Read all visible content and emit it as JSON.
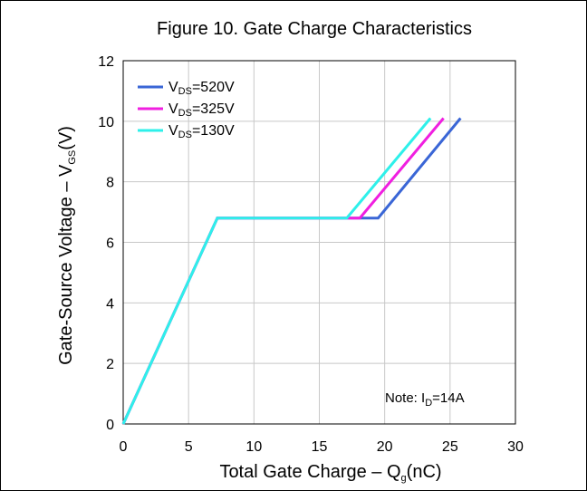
{
  "chart_data": {
    "type": "line",
    "title": "Figure 10. Gate Charge Characteristics",
    "xlabel": {
      "main": "Total Gate Charge  –  Q",
      "sub": "g",
      "unit": "(nC)"
    },
    "ylabel": {
      "main": "Gate-Source Voltage  –  V",
      "sub": "GS",
      "unit": "(V)"
    },
    "xlim": [
      0,
      30
    ],
    "ylim": [
      0,
      12
    ],
    "xticks": [
      0,
      5,
      10,
      15,
      20,
      25,
      30
    ],
    "yticks": [
      0,
      2,
      4,
      6,
      8,
      10,
      12
    ],
    "grid": true,
    "legend_position": "top-left",
    "series": [
      {
        "name": {
          "pre": "V",
          "sub": "DS",
          "post": "=520V"
        },
        "color": "#3a66d6",
        "x": [
          0,
          7.2,
          19.5,
          25.8
        ],
        "y": [
          0,
          6.8,
          6.8,
          10.1
        ]
      },
      {
        "name": {
          "pre": "V",
          "sub": "DS",
          "post": "=325V"
        },
        "color": "#f01fe0",
        "x": [
          0,
          7.2,
          18.1,
          24.5
        ],
        "y": [
          0,
          6.8,
          6.8,
          10.1
        ]
      },
      {
        "name": {
          "pre": "V",
          "sub": "DS",
          "post": "=130V"
        },
        "color": "#2ef0ea",
        "x": [
          0,
          7.2,
          17.1,
          23.5
        ],
        "y": [
          0,
          6.8,
          6.8,
          10.1
        ]
      }
    ],
    "annotation": {
      "pre": "Note: I",
      "sub": "D",
      "post": "=14A"
    }
  }
}
